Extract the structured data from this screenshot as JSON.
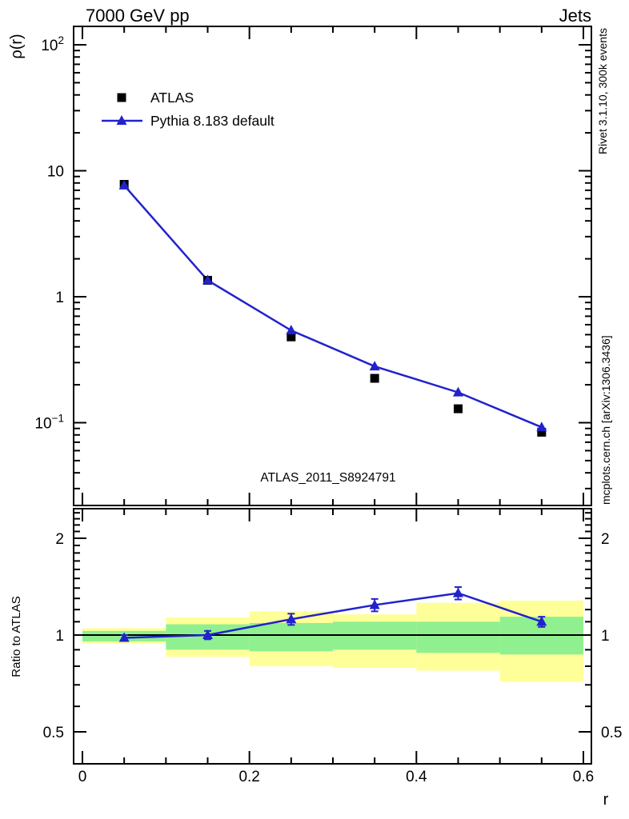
{
  "header": {
    "title_left": "7000 GeV pp",
    "title_right": "Jets"
  },
  "side_texts": {
    "right_top": "Rivet 3.1.10,  300k events",
    "right_bottom": "mcplots.cern.ch [arXiv:1306.3436]"
  },
  "watermark": "ATLAS_2011_S8924791",
  "colors": {
    "pythia_blue": "#2222cc",
    "atlas_black": "#000000",
    "band_green": "#90f090",
    "band_yellow": "#ffff99",
    "gray_text": "#999999",
    "watermark_gray": "#b8b8b8",
    "frame_black": "#000000"
  },
  "chart_data": {
    "type": "line",
    "title": "7000 GeV pp — Jets",
    "xlabel": "r",
    "xlim": [
      0,
      0.6
    ],
    "x_values": [
      0.05,
      0.15,
      0.25,
      0.35,
      0.45,
      0.55
    ],
    "x_major_ticks": [
      0,
      0.2,
      0.4,
      0.6
    ],
    "x_tick_labels": [
      "0",
      "0.2",
      "0.4",
      "0.6"
    ],
    "x_minor_step": 0.05,
    "main_panel": {
      "ylabel": "ρ(r)",
      "yscale": "log",
      "ylim": [
        0.022,
        140
      ],
      "y_major_ticks": [
        100,
        10,
        1,
        0.1
      ],
      "grid": false,
      "legend_position": "top-left",
      "series": [
        {
          "name": "ATLAS",
          "marker": "square",
          "color": "#000000",
          "line": false,
          "values": [
            7.8,
            1.35,
            0.48,
            0.225,
            0.129,
            0.084
          ]
        },
        {
          "name": "Pythia 8.183 default",
          "marker": "triangle",
          "color": "#2222cc",
          "line": true,
          "values": [
            7.65,
            1.35,
            0.54,
            0.28,
            0.174,
            0.092
          ]
        }
      ]
    },
    "ratio_panel": {
      "ylabel": "Ratio to ATLAS",
      "yscale": "log",
      "ylim": [
        0.4,
        2.47
      ],
      "y_major_ticks": [
        0.5,
        1,
        2
      ],
      "y_tick_labels": [
        "0.5",
        "1",
        "2"
      ],
      "reference_line": 1,
      "ratio_series_name": "Pythia 8.183 default / ATLAS",
      "ratio_values": [
        0.98,
        1.0,
        1.12,
        1.24,
        1.35,
        1.1
      ],
      "ratio_errors": [
        0.02,
        0.03,
        0.045,
        0.055,
        0.06,
        0.04
      ],
      "uncertainty_bands": [
        {
          "range": [
            0.0,
            0.1
          ],
          "green": [
            0.955,
            1.03
          ],
          "yellow": [
            0.94,
            1.05
          ]
        },
        {
          "range": [
            0.1,
            0.2
          ],
          "green": [
            0.9,
            1.08
          ],
          "yellow": [
            0.855,
            1.135
          ]
        },
        {
          "range": [
            0.2,
            0.3
          ],
          "green": [
            0.89,
            1.09
          ],
          "yellow": [
            0.8,
            1.185
          ]
        },
        {
          "range": [
            0.3,
            0.4
          ],
          "green": [
            0.9,
            1.1
          ],
          "yellow": [
            0.79,
            1.16
          ]
        },
        {
          "range": [
            0.4,
            0.5
          ],
          "green": [
            0.88,
            1.1
          ],
          "yellow": [
            0.775,
            1.26
          ]
        },
        {
          "range": [
            0.5,
            0.6
          ],
          "green": [
            0.87,
            1.14
          ],
          "yellow": [
            0.715,
            1.28
          ]
        }
      ]
    }
  }
}
